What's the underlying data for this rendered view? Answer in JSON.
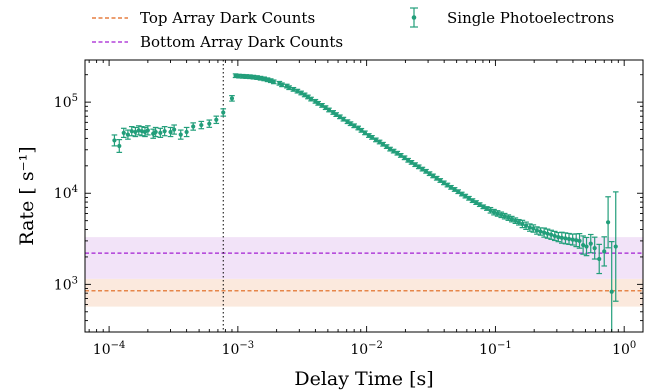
{
  "chart_data": {
    "type": "scatter",
    "title": "",
    "xlabel": "Delay Time [s]",
    "ylabel": "Rate [ s⁻¹]",
    "x_scale": "log",
    "y_scale": "log",
    "xlim": [
      6.5e-05,
      1.4
    ],
    "ylim": [
      300,
      290000
    ],
    "x_ticks": [
      {
        "value": 0.0001,
        "base": "10",
        "exp": "−4"
      },
      {
        "value": 0.001,
        "base": "10",
        "exp": "−3"
      },
      {
        "value": 0.01,
        "base": "10",
        "exp": "−2"
      },
      {
        "value": 0.1,
        "base": "10",
        "exp": "−1"
      },
      {
        "value": 1,
        "base": "10",
        "exp": "0"
      }
    ],
    "y_ticks": [
      {
        "value": 1000,
        "base": "10",
        "exp": "3"
      },
      {
        "value": 10000,
        "base": "10",
        "exp": "4"
      },
      {
        "value": 100000,
        "base": "10",
        "exp": "5"
      }
    ],
    "vline_x": 0.00077,
    "legend_placement": "top, above plot, two columns",
    "series": [
      {
        "name": "Single Photoelectrons",
        "color": "#229e7a",
        "style": "errorbar",
        "x": [
          0.00011,
          0.00012,
          0.00013,
          0.00014,
          0.00015,
          0.00016,
          0.00017,
          0.00018,
          0.00019,
          0.0002,
          0.00022,
          0.00023,
          0.00025,
          0.00027,
          0.0003,
          0.00032,
          0.00036,
          0.0004,
          0.00045,
          0.00052,
          0.0006,
          0.00068,
          0.00077,
          0.0009,
          0.00096,
          0.00102,
          0.00109,
          0.00116,
          0.00124,
          0.00132,
          0.00141,
          0.0015,
          0.0016,
          0.0017,
          0.0018,
          0.0019,
          0.0021,
          0.0022,
          0.0024,
          0.0025,
          0.0027,
          0.0029,
          0.0031,
          0.0033,
          0.0035,
          0.0037,
          0.004,
          0.0042,
          0.0045,
          0.0048,
          0.0051,
          0.0055,
          0.0058,
          0.0062,
          0.0066,
          0.0071,
          0.0075,
          0.008,
          0.0086,
          0.0091,
          0.0097,
          0.0104,
          0.011,
          0.0118,
          0.0126,
          0.0134,
          0.0143,
          0.0152,
          0.0162,
          0.0173,
          0.0184,
          0.0197,
          0.021,
          0.0223,
          0.0238,
          0.0254,
          0.0271,
          0.0289,
          0.0308,
          0.0328,
          0.035,
          0.0373,
          0.0398,
          0.0424,
          0.0452,
          0.0482,
          0.0514,
          0.0548,
          0.0584,
          0.0623,
          0.0664,
          0.0708,
          0.0755,
          0.0805,
          0.0858,
          0.0915,
          0.0975,
          0.104,
          0.111,
          0.118,
          0.126,
          0.134,
          0.143,
          0.152,
          0.162,
          0.173,
          0.185,
          0.197,
          0.21,
          0.224,
          0.239,
          0.254,
          0.271,
          0.289,
          0.308,
          0.328,
          0.35,
          0.373,
          0.398,
          0.424,
          0.45,
          0.48,
          0.51,
          0.55,
          0.59,
          0.64,
          0.7,
          0.75,
          0.8,
          0.86
        ],
        "y": [
          38000,
          33000,
          46000,
          44000,
          48000,
          47000,
          49000,
          48000,
          47000,
          49000,
          45000,
          47000,
          46000,
          48000,
          47000,
          50000,
          44000,
          47000,
          54000,
          56000,
          58000,
          64000,
          77000,
          110000,
          195000,
          193000,
          192000,
          191000,
          190000,
          188000,
          186000,
          183000,
          180000,
          176000,
          172000,
          167000,
          161000,
          155000,
          150000,
          144000,
          138000,
          132000,
          126000,
          120000,
          114000,
          108000,
          102000,
          97000,
          92000,
          87000,
          82000,
          77000,
          73000,
          69000,
          65000,
          61000,
          58000,
          55000,
          52000,
          49000,
          46000,
          43000,
          41000,
          38500,
          36500,
          34500,
          32500,
          30500,
          29000,
          27500,
          26000,
          24500,
          23000,
          21800,
          20600,
          19500,
          18400,
          17400,
          16400,
          15500,
          14600,
          13800,
          13000,
          12300,
          11600,
          11000,
          10400,
          9800,
          9300,
          8800,
          8300,
          7900,
          7500,
          7100,
          6800,
          6500,
          6200,
          6000,
          5800,
          5600,
          5400,
          5200,
          5000,
          4800,
          4600,
          4400,
          4200,
          4100,
          3900,
          3800,
          3700,
          3600,
          3500,
          3400,
          3300,
          3250,
          3200,
          3150,
          3100,
          3050,
          3000,
          2700,
          2600,
          2800,
          2500,
          1900,
          2300,
          4800,
          830,
          2600
        ],
        "err": [
          0.06,
          0.07,
          0.05,
          0.05,
          0.05,
          0.05,
          0.05,
          0.05,
          0.05,
          0.05,
          0.05,
          0.05,
          0.05,
          0.05,
          0.05,
          0.05,
          0.05,
          0.05,
          0.04,
          0.04,
          0.04,
          0.04,
          0.04,
          0.03,
          0.02,
          0.02,
          0.02,
          0.02,
          0.02,
          0.02,
          0.02,
          0.02,
          0.02,
          0.02,
          0.02,
          0.02,
          0.02,
          0.02,
          0.02,
          0.02,
          0.02,
          0.02,
          0.02,
          0.02,
          0.02,
          0.02,
          0.02,
          0.02,
          0.02,
          0.02,
          0.02,
          0.02,
          0.02,
          0.02,
          0.02,
          0.02,
          0.02,
          0.02,
          0.02,
          0.02,
          0.02,
          0.02,
          0.02,
          0.02,
          0.02,
          0.02,
          0.02,
          0.02,
          0.02,
          0.02,
          0.02,
          0.02,
          0.02,
          0.02,
          0.02,
          0.02,
          0.02,
          0.02,
          0.02,
          0.02,
          0.02,
          0.02,
          0.02,
          0.02,
          0.02,
          0.02,
          0.02,
          0.02,
          0.02,
          0.02,
          0.02,
          0.02,
          0.02,
          0.02,
          0.02,
          0.03,
          0.03,
          0.03,
          0.03,
          0.03,
          0.03,
          0.03,
          0.03,
          0.03,
          0.04,
          0.04,
          0.04,
          0.04,
          0.04,
          0.04,
          0.05,
          0.05,
          0.05,
          0.05,
          0.05,
          0.06,
          0.06,
          0.06,
          0.06,
          0.07,
          0.08,
          0.1,
          0.1,
          0.1,
          0.12,
          0.16,
          0.16,
          0.28,
          0.55,
          0.6
        ]
      },
      {
        "name": "Top Array Dark Counts",
        "color": "#e0651a",
        "style": "dashed",
        "value": 850,
        "band": [
          570,
          1150
        ],
        "band_color": "#fbe9dd"
      },
      {
        "name": "Bottom Array Dark Counts",
        "color": "#a31ed2",
        "style": "dashed",
        "value": 2200,
        "band": [
          1150,
          3300
        ],
        "band_color": "#f2e3f8"
      }
    ]
  }
}
